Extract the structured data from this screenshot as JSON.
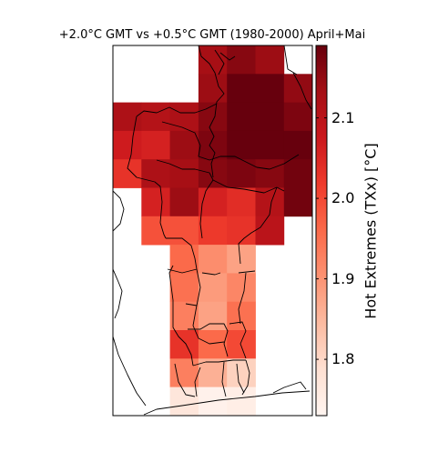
{
  "chart_data": {
    "type": "heatmap",
    "title": "+2.0°C GMT vs +0.5°C GMT (1980-2000) April+Mai",
    "colorbar": {
      "label": "Hot Extremes (TXx) [$^\\circ C$]",
      "label_display": "Hot Extremes (TXx) [°C]",
      "vmin": 1.73,
      "vmax": 2.19,
      "ticks": [
        1.8,
        1.9,
        2.0,
        2.1
      ],
      "tick_labels": [
        "1.8",
        "1.9",
        "2.0",
        "2.1"
      ],
      "colormap": "Reds",
      "position": "right"
    },
    "grid_columns": 7,
    "grid_rows": 13,
    "cells": [
      {
        "col": 3,
        "row": 0,
        "value": 2.13
      },
      {
        "col": 4,
        "row": 0,
        "value": 2.16
      },
      {
        "col": 5,
        "row": 0,
        "value": 2.14
      },
      {
        "col": 3,
        "row": 1,
        "value": 2.14
      },
      {
        "col": 4,
        "row": 1,
        "value": 2.19
      },
      {
        "col": 5,
        "row": 1,
        "value": 2.19
      },
      {
        "col": 6,
        "row": 1,
        "value": 2.15
      },
      {
        "col": 0,
        "row": 2,
        "value": 2.12
      },
      {
        "col": 1,
        "row": 2,
        "value": 2.11
      },
      {
        "col": 2,
        "row": 2,
        "value": 2.12
      },
      {
        "col": 3,
        "row": 2,
        "value": 2.16
      },
      {
        "col": 4,
        "row": 2,
        "value": 2.19
      },
      {
        "col": 5,
        "row": 2,
        "value": 2.19
      },
      {
        "col": 6,
        "row": 2,
        "value": 2.17
      },
      {
        "col": 0,
        "row": 3,
        "value": 2.07
      },
      {
        "col": 1,
        "row": 3,
        "value": 2.06
      },
      {
        "col": 2,
        "row": 3,
        "value": 2.14
      },
      {
        "col": 3,
        "row": 3,
        "value": 2.17
      },
      {
        "col": 4,
        "row": 3,
        "value": 2.19
      },
      {
        "col": 5,
        "row": 3,
        "value": 2.19
      },
      {
        "col": 6,
        "row": 3,
        "value": 2.19
      },
      {
        "col": 0,
        "row": 4,
        "value": 2.03
      },
      {
        "col": 1,
        "row": 4,
        "value": 2.12
      },
      {
        "col": 2,
        "row": 4,
        "value": 2.13
      },
      {
        "col": 3,
        "row": 4,
        "value": 2.16
      },
      {
        "col": 4,
        "row": 4,
        "value": 2.17
      },
      {
        "col": 5,
        "row": 4,
        "value": 2.16
      },
      {
        "col": 6,
        "row": 4,
        "value": 2.18
      },
      {
        "col": 1,
        "row": 5,
        "value": 2.06
      },
      {
        "col": 2,
        "row": 5,
        "value": 2.14
      },
      {
        "col": 3,
        "row": 5,
        "value": 2.06
      },
      {
        "col": 4,
        "row": 5,
        "value": 2.04
      },
      {
        "col": 5,
        "row": 5,
        "value": 2.11
      },
      {
        "col": 6,
        "row": 5,
        "value": 2.18
      },
      {
        "col": 1,
        "row": 6,
        "value": 1.99
      },
      {
        "col": 2,
        "row": 6,
        "value": 1.99
      },
      {
        "col": 3,
        "row": 6,
        "value": 2.02
      },
      {
        "col": 4,
        "row": 6,
        "value": 2.03
      },
      {
        "col": 5,
        "row": 6,
        "value": 2.1
      },
      {
        "col": 2,
        "row": 7,
        "value": 1.96
      },
      {
        "col": 3,
        "row": 7,
        "value": 1.91
      },
      {
        "col": 4,
        "row": 7,
        "value": 1.88
      },
      {
        "col": 2,
        "row": 8,
        "value": 1.95
      },
      {
        "col": 3,
        "row": 8,
        "value": 1.89
      },
      {
        "col": 4,
        "row": 8,
        "value": 1.92
      },
      {
        "col": 2,
        "row": 9,
        "value": 1.93
      },
      {
        "col": 3,
        "row": 9,
        "value": 1.88
      },
      {
        "col": 4,
        "row": 9,
        "value": 1.95
      },
      {
        "col": 2,
        "row": 10,
        "value": 2.03
      },
      {
        "col": 3,
        "row": 10,
        "value": 1.96
      },
      {
        "col": 4,
        "row": 10,
        "value": 2.0
      },
      {
        "col": 2,
        "row": 11,
        "value": 1.93
      },
      {
        "col": 3,
        "row": 11,
        "value": 1.86
      },
      {
        "col": 4,
        "row": 11,
        "value": 1.81
      },
      {
        "col": 2,
        "row": 12,
        "value": 1.77
      },
      {
        "col": 3,
        "row": 12,
        "value": 1.74
      },
      {
        "col": 4,
        "row": 12,
        "value": 1.75
      }
    ]
  }
}
